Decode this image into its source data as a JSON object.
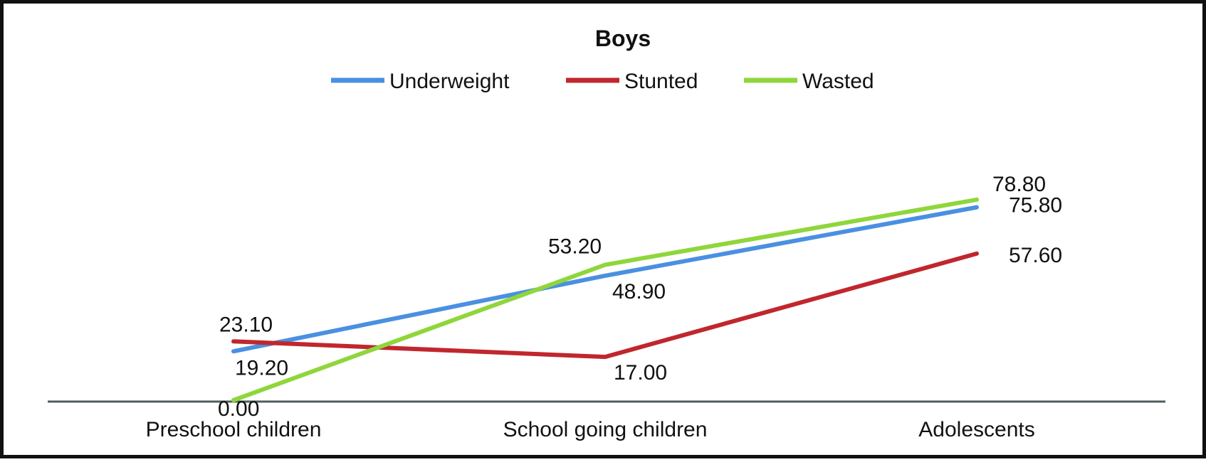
{
  "chart_data": {
    "type": "line",
    "title": "Boys",
    "xlabel": "",
    "ylabel": "",
    "categories": [
      "Preschool children",
      "School going children",
      "Adolescents"
    ],
    "ylim": [
      0,
      100
    ],
    "grid": false,
    "legend_position": "top",
    "series": [
      {
        "name": "Underweight",
        "color": "#4a90e2",
        "values": [
          19.2,
          48.9,
          75.8
        ],
        "labels": [
          "19.20",
          "48.90",
          "75.80"
        ]
      },
      {
        "name": "Stunted",
        "color": "#c0272d",
        "values": [
          23.1,
          17.0,
          57.6
        ],
        "labels": [
          "23.10",
          "17.00",
          "57.60"
        ]
      },
      {
        "name": "Wasted",
        "color": "#8fd63c",
        "values": [
          0.0,
          53.2,
          78.8
        ],
        "labels": [
          "0.00",
          "53.20",
          "78.80"
        ]
      }
    ]
  }
}
